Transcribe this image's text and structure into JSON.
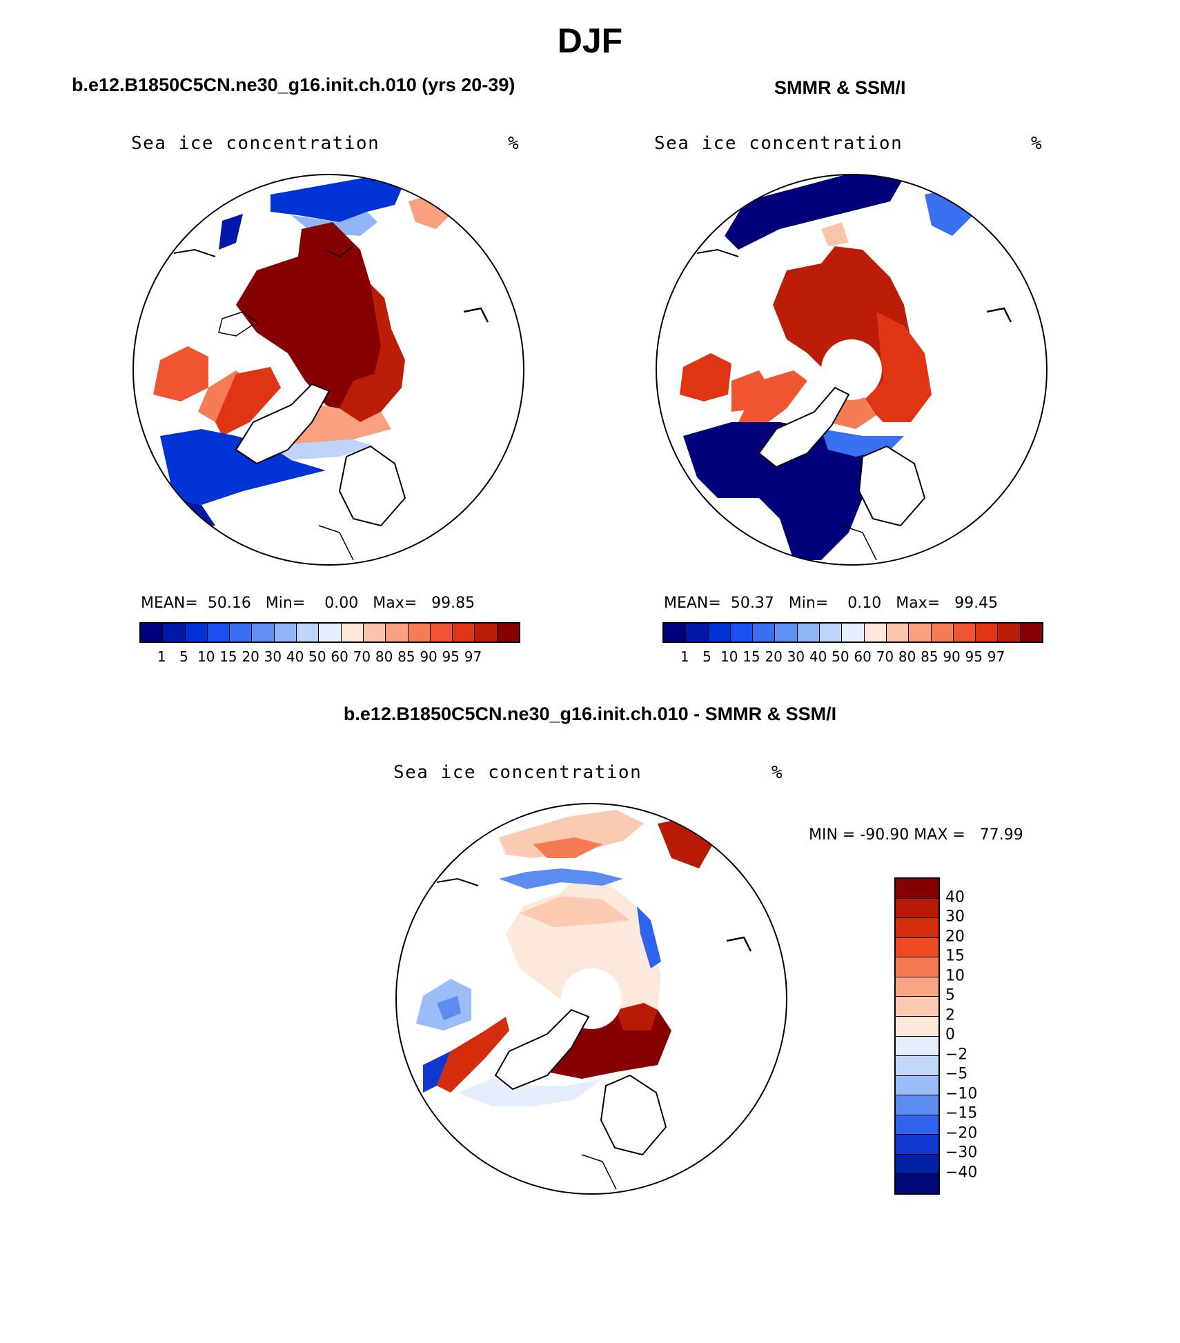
{
  "figure_title": "DJF",
  "panels": [
    {
      "id": "model",
      "title": "b.e12.B1850C5CN.ne30_g16.init.ch.010 (yrs 20-39)",
      "variable": "Sea ice concentration",
      "units": "%",
      "stats": {
        "mean_label": "MEAN=",
        "mean": "50.16",
        "min_label": "Min=",
        "min": "0.00",
        "max_label": "Max=",
        "max": "99.85"
      }
    },
    {
      "id": "obs",
      "title": "SMMR & SSM/I",
      "variable": "Sea ice concentration",
      "units": "%",
      "stats": {
        "mean_label": "MEAN=",
        "mean": "50.37",
        "min_label": "Min=",
        "min": "0.10",
        "max_label": "Max=",
        "max": "99.45"
      }
    },
    {
      "id": "diff",
      "title": "b.e12.B1850C5CN.ne30_g16.init.ch.010 - SMMR & SSM/I",
      "variable": "Sea ice concentration",
      "units": "%",
      "stats": {
        "min_label": "MIN =",
        "min": "-90.90",
        "max_label": "MAX =",
        "max": "77.99"
      }
    }
  ],
  "concentration_colorbar": {
    "levels": [
      "1",
      "5",
      "10",
      "15",
      "20",
      "30",
      "40",
      "50",
      "60",
      "70",
      "80",
      "85",
      "90",
      "95",
      "97"
    ],
    "colors": [
      "#00007a",
      "#0019a8",
      "#0033d6",
      "#1a50f0",
      "#3a70f2",
      "#6090f2",
      "#90b4f6",
      "#c0d4fa",
      "#e6effd",
      "#fde8da",
      "#fcc4aa",
      "#f9a07e",
      "#f57c55",
      "#ef5530",
      "#df3515",
      "#bc1d08",
      "#870000"
    ]
  },
  "difference_colorbar": {
    "levels": [
      "40",
      "30",
      "20",
      "15",
      "10",
      "5",
      "2",
      "0",
      "-2",
      "-5",
      "-10",
      "-15",
      "-20",
      "-30",
      "-40"
    ],
    "colors": [
      "#870000",
      "#b81a06",
      "#d52c0c",
      "#ee4a22",
      "#f57a52",
      "#f9a584",
      "#fcc9b1",
      "#fde9dc",
      "#e4eefd",
      "#c2d8fb",
      "#9abdf7",
      "#5a8cf2",
      "#2f63ef",
      "#1038d0",
      "#0020a6",
      "#000a7a"
    ]
  },
  "chart_data": [
    {
      "type": "heatmap",
      "title": "b.e12.B1850C5CN.ne30_g16.init.ch.010 (yrs 20-39)",
      "variable": "Sea ice concentration",
      "units": "%",
      "projection": "polar-stereographic-north",
      "mean": 50.16,
      "min": 0.0,
      "max": 99.85,
      "contour_levels": [
        1,
        5,
        10,
        15,
        20,
        30,
        40,
        50,
        60,
        70,
        80,
        85,
        90,
        95,
        97
      ]
    },
    {
      "type": "heatmap",
      "title": "SMMR & SSM/I",
      "variable": "Sea ice concentration",
      "units": "%",
      "projection": "polar-stereographic-north",
      "mean": 50.37,
      "min": 0.1,
      "max": 99.45,
      "pole_hole": true,
      "contour_levels": [
        1,
        5,
        10,
        15,
        20,
        30,
        40,
        50,
        60,
        70,
        80,
        85,
        90,
        95,
        97
      ]
    },
    {
      "type": "heatmap",
      "title": "b.e12.B1850C5CN.ne30_g16.init.ch.010 - SMMR & SSM/I",
      "variable": "Sea ice concentration",
      "units": "%",
      "projection": "polar-stereographic-north",
      "min": -90.9,
      "max": 77.99,
      "pole_hole": true,
      "contour_levels": [
        -40,
        -30,
        -20,
        -15,
        -10,
        -5,
        -2,
        0,
        2,
        5,
        10,
        15,
        20,
        30,
        40
      ]
    }
  ]
}
